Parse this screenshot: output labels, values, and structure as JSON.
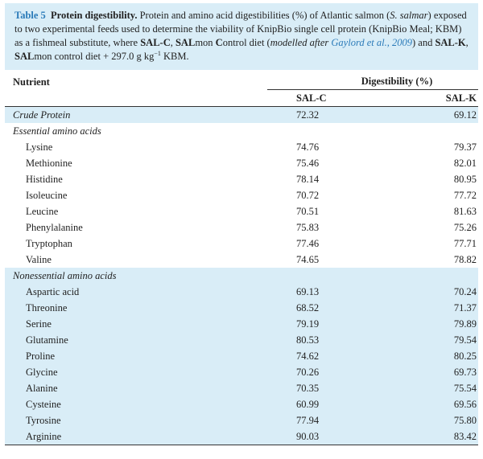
{
  "caption": {
    "label": "Table 5",
    "title": "Protein digestibility.",
    "text_1": " Protein and amino acid digestibilities (%) of Atlantic salmon (",
    "species": "S. salmar",
    "text_2": ") exposed to two experimental feeds used to determine the viability of KnipBio single cell protein (KnipBio Meal; KBM) as a fishmeal substitute, where ",
    "salc": "SAL-C",
    "text_3": ", ",
    "sal": "SAL",
    "text_4": "mon ",
    "c": "C",
    "text_5": "ontrol diet (",
    "modelled": "modelled after ",
    "ref": "Gaylord et al., 2009",
    "text_6": ") and ",
    "salk": "SAL-K",
    "text_7": ", ",
    "sal2": "SAL",
    "text_8": "mon control diet + 297.0 g kg",
    "sup": "−1",
    "text_9": " KBM."
  },
  "table": {
    "col_nutrient": "Nutrient",
    "col_digestibility": "Digestibility (%)",
    "col_salc": "SAL-C",
    "col_salk": "SAL-K",
    "crude_protein": {
      "name": "Crude Protein",
      "salc": "72.32",
      "salk": "69.12"
    },
    "essential_label": "Essential amino acids",
    "essential": [
      {
        "name": "Lysine",
        "salc": "74.76",
        "salk": "79.37"
      },
      {
        "name": "Methionine",
        "salc": "75.46",
        "salk": "82.01"
      },
      {
        "name": "Histidine",
        "salc": "78.14",
        "salk": "80.95"
      },
      {
        "name": "Isoleucine",
        "salc": "70.72",
        "salk": "77.72"
      },
      {
        "name": "Leucine",
        "salc": "70.51",
        "salk": "81.63"
      },
      {
        "name": "Phenylalanine",
        "salc": "75.83",
        "salk": "75.26"
      },
      {
        "name": "Tryptophan",
        "salc": "77.46",
        "salk": "77.71"
      },
      {
        "name": "Valine",
        "salc": "74.65",
        "salk": "78.82"
      }
    ],
    "nonessential_label": "Nonessential amino acids",
    "nonessential": [
      {
        "name": "Aspartic acid",
        "salc": "69.13",
        "salk": "70.24"
      },
      {
        "name": "Threonine",
        "salc": "68.52",
        "salk": "71.37"
      },
      {
        "name": "Serine",
        "salc": "79.19",
        "salk": "79.89"
      },
      {
        "name": "Glutamine",
        "salc": "80.53",
        "salk": "79.54"
      },
      {
        "name": "Proline",
        "salc": "74.62",
        "salk": "80.25"
      },
      {
        "name": "Glycine",
        "salc": "70.26",
        "salk": "69.73"
      },
      {
        "name": "Alanine",
        "salc": "70.35",
        "salk": "75.54"
      },
      {
        "name": "Cysteine",
        "salc": "60.99",
        "salk": "69.56"
      },
      {
        "name": "Tyrosine",
        "salc": "77.94",
        "salk": "75.80"
      },
      {
        "name": "Arginine",
        "salc": "90.03",
        "salk": "83.42"
      }
    ]
  },
  "colors": {
    "accent": "#2b7bb9",
    "shade": "#d9edf7"
  }
}
